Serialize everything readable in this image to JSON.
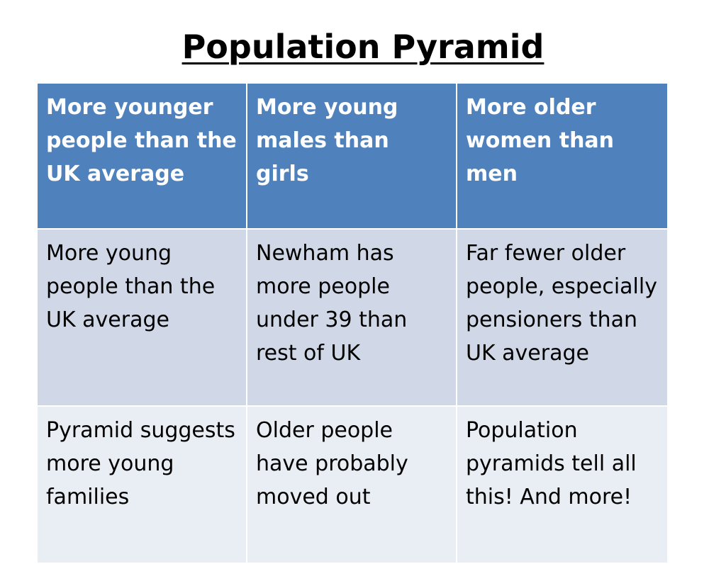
{
  "slide": {
    "title": "Population Pyramid"
  },
  "table": {
    "headers": [
      "More younger people than the UK average",
      "More young males than girls",
      "More older women than men"
    ],
    "rows": [
      [
        "More young people than the UK average",
        "Newham has more people under 39 than rest of UK",
        "Far fewer older people, especially pensioners than UK average"
      ],
      [
        "Pyramid suggests more young families",
        "Older people have probably moved out",
        "Population pyramids tell all this! And more!"
      ]
    ]
  },
  "colors": {
    "header_bg": "#4f81bd",
    "row_odd_bg": "#d0d8e8",
    "row_even_bg": "#e9edf4",
    "header_text": "#ffffff"
  }
}
